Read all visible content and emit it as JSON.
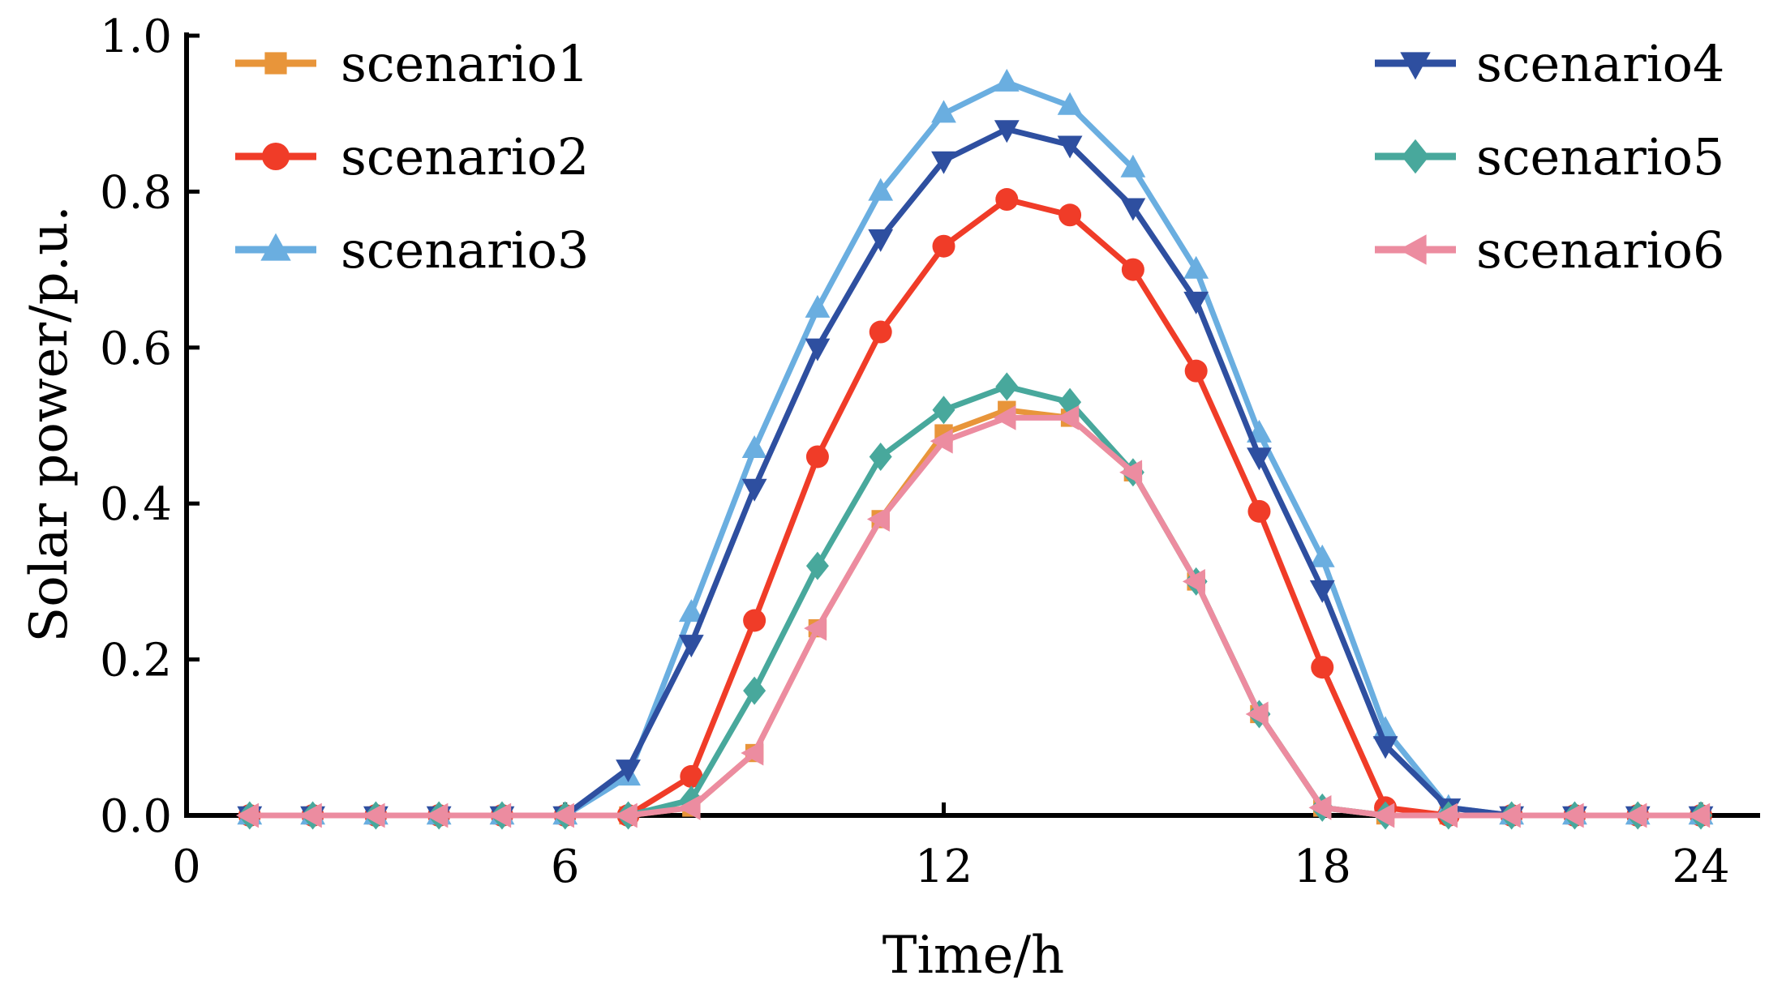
{
  "chart_data": {
    "type": "line",
    "title": "",
    "xlabel": "Time/h",
    "ylabel": "Solar power/p.u.",
    "xlim": [
      0,
      24
    ],
    "ylim": [
      0,
      1.0
    ],
    "xticks": [
      0,
      6,
      12,
      18,
      24
    ],
    "xtick_labels": [
      "0",
      "6",
      "12",
      "18",
      "24"
    ],
    "yticks": [
      0,
      0.2,
      0.4,
      0.6,
      0.8,
      1.0
    ],
    "ytick_labels": [
      "0.0",
      "0.2",
      "0.4",
      "0.6",
      "0.8",
      "1.0"
    ],
    "grid": false,
    "legend_placement": "top-left and top-right (two columns)",
    "x": [
      1,
      2,
      3,
      4,
      5,
      6,
      7,
      8,
      9,
      10,
      11,
      12,
      13,
      14,
      15,
      16,
      17,
      18,
      19,
      20,
      21,
      22,
      23,
      24
    ],
    "series": [
      {
        "name": "scenario1",
        "color": "#E8953A",
        "marker": "square",
        "values": [
          0,
          0,
          0,
          0,
          0,
          0,
          0,
          0.01,
          0.08,
          0.24,
          0.38,
          0.49,
          0.52,
          0.51,
          0.44,
          0.3,
          0.13,
          0.01,
          0,
          0,
          0,
          0,
          0,
          0
        ]
      },
      {
        "name": "scenario2",
        "color": "#F03C28",
        "marker": "circle",
        "values": [
          0,
          0,
          0,
          0,
          0,
          0,
          0,
          0.05,
          0.25,
          0.46,
          0.62,
          0.73,
          0.79,
          0.77,
          0.7,
          0.57,
          0.39,
          0.19,
          0.01,
          0,
          0,
          0,
          0,
          0
        ]
      },
      {
        "name": "scenario3",
        "color": "#6AAEE0",
        "marker": "triangle-up",
        "values": [
          0,
          0,
          0,
          0,
          0,
          0,
          0.05,
          0.26,
          0.47,
          0.65,
          0.8,
          0.9,
          0.94,
          0.91,
          0.83,
          0.7,
          0.49,
          0.33,
          0.11,
          0.01,
          0,
          0,
          0,
          0
        ]
      },
      {
        "name": "scenario4",
        "color": "#2E4FA0",
        "marker": "triangle-down",
        "values": [
          0,
          0,
          0,
          0,
          0,
          0,
          0.06,
          0.22,
          0.42,
          0.6,
          0.74,
          0.84,
          0.88,
          0.86,
          0.78,
          0.66,
          0.46,
          0.29,
          0.09,
          0.01,
          0,
          0,
          0,
          0
        ]
      },
      {
        "name": "scenario5",
        "color": "#48A89C",
        "marker": "diamond",
        "values": [
          0,
          0,
          0,
          0,
          0,
          0,
          0,
          0.02,
          0.16,
          0.32,
          0.46,
          0.52,
          0.55,
          0.53,
          0.44,
          0.3,
          0.13,
          0.01,
          0,
          0,
          0,
          0,
          0,
          0
        ]
      },
      {
        "name": "scenario6",
        "color": "#EC8CA0",
        "marker": "triangle-left",
        "values": [
          0,
          0,
          0,
          0,
          0,
          0,
          0,
          0.01,
          0.08,
          0.24,
          0.38,
          0.48,
          0.51,
          0.51,
          0.44,
          0.3,
          0.13,
          0.01,
          0,
          0,
          0,
          0,
          0,
          0
        ]
      }
    ]
  }
}
